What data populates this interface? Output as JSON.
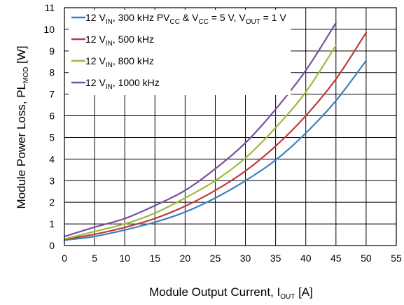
{
  "chart_data": {
    "type": "line",
    "xlabel": {
      "main": "Module Output Current, I",
      "sub": "OUT",
      "unit": " [A]"
    },
    "ylabel": {
      "main": "Module Power Loss, PL",
      "sub": "MOD",
      "unit": " [W]"
    },
    "xlim": [
      0,
      55
    ],
    "ylim": [
      0,
      11
    ],
    "xticks": [
      "0",
      "5",
      "10",
      "15",
      "20",
      "25",
      "30",
      "35",
      "40",
      "45",
      "50",
      "55"
    ],
    "yticks": [
      "0",
      "1",
      "2",
      "3",
      "4",
      "5",
      "6",
      "7",
      "8",
      "9",
      "10",
      "11"
    ],
    "grid": true,
    "legend_position": "top-left",
    "legend_note": "PV<sub>CC</sub> & V<sub>CC</sub> = 5 V, V<sub>OUT</sub> = 1 V",
    "series": [
      {
        "name": "12 V<sub>IN</sub>, 300 kHz",
        "color": "#3c7fc0",
        "x": [
          0,
          5,
          10,
          15,
          20,
          25,
          30,
          35,
          40,
          45,
          50
        ],
        "y": [
          0.25,
          0.42,
          0.72,
          1.08,
          1.55,
          2.2,
          3.0,
          3.95,
          5.2,
          6.7,
          8.55
        ]
      },
      {
        "name": "12 V<sub>IN</sub>, 500 kHz",
        "color": "#c0393b",
        "x": [
          0,
          5,
          10,
          15,
          20,
          25,
          30,
          35,
          40,
          45,
          50
        ],
        "y": [
          0.28,
          0.52,
          0.84,
          1.25,
          1.82,
          2.55,
          3.45,
          4.6,
          6.0,
          7.7,
          9.85
        ]
      },
      {
        "name": "12 V<sub>IN</sub>, 800 kHz",
        "color": "#9bbb3b",
        "x": [
          0,
          5,
          10,
          15,
          20,
          25,
          30,
          35,
          40,
          45
        ],
        "y": [
          0.3,
          0.65,
          1.0,
          1.5,
          2.2,
          3.0,
          4.05,
          5.45,
          7.1,
          9.25
        ]
      },
      {
        "name": "12 V<sub>IN</sub>, 1000 kHz",
        "color": "#7a4f9e",
        "x": [
          0,
          5,
          10,
          15,
          20,
          25,
          30,
          35,
          40,
          45
        ],
        "y": [
          0.42,
          0.85,
          1.25,
          1.85,
          2.55,
          3.55,
          4.75,
          6.3,
          8.1,
          10.3
        ]
      }
    ]
  }
}
